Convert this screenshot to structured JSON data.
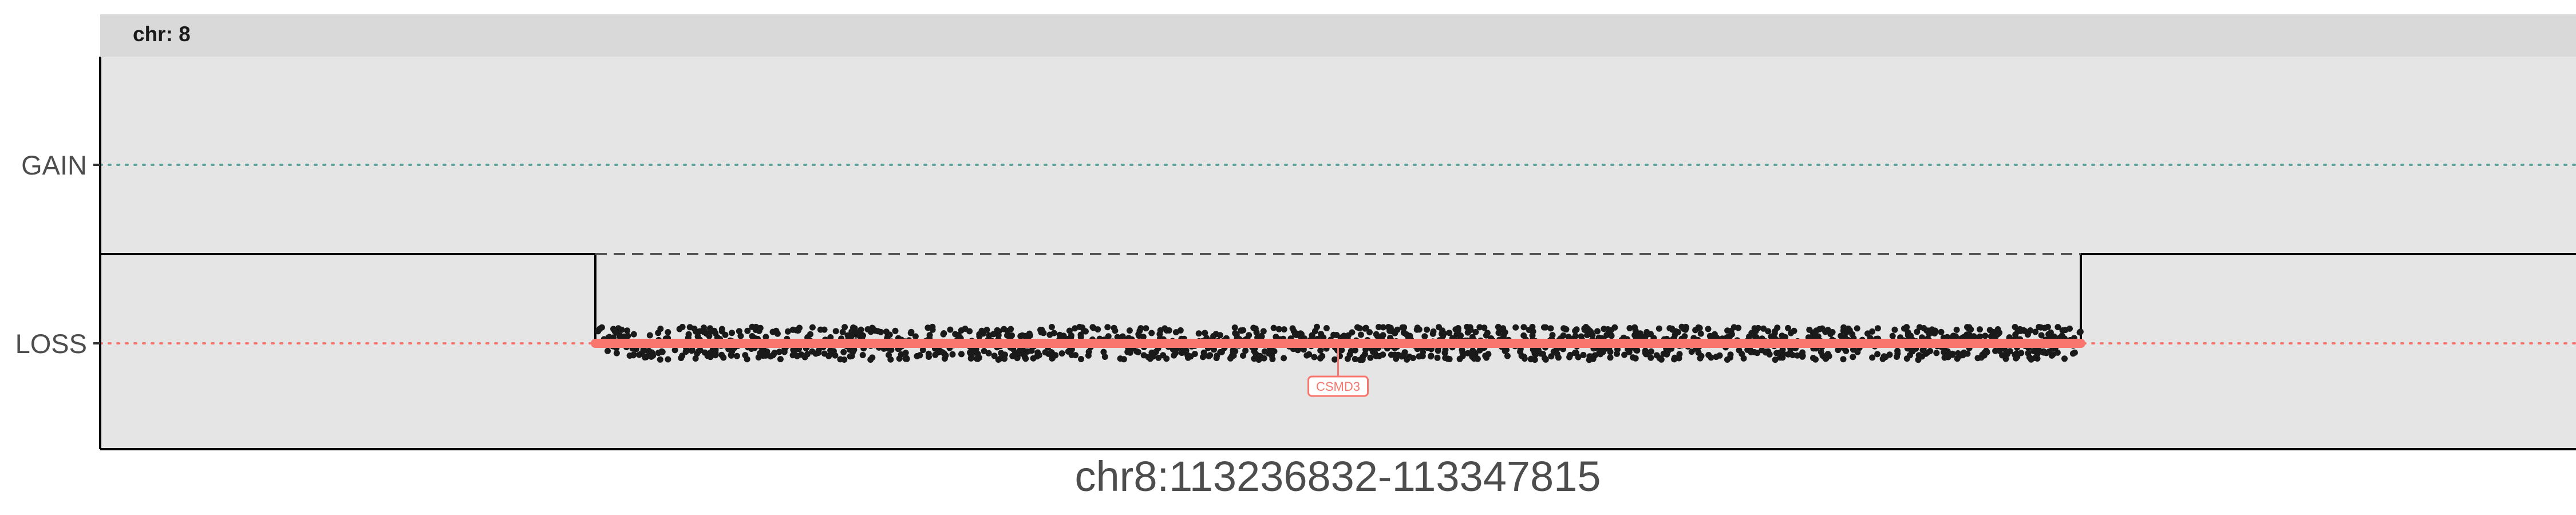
{
  "chart_data": {
    "type": "scatter",
    "facet_label": "chr: 8",
    "xlabel": "chr8:113236832-113347815",
    "y_categories": [
      "GAIN",
      "LOSS"
    ],
    "x_domain": [
      0,
      1
    ],
    "segments": {
      "neutral_value": 0,
      "loss_region": {
        "start": 0.2,
        "end": 0.8,
        "value": -1
      },
      "dashed_baseline": {
        "start": 0.2,
        "end": 0.8,
        "value": 0
      }
    },
    "points": {
      "category": "LOSS",
      "x_range": [
        0.2,
        0.8
      ],
      "count": 1500,
      "jitter": 0.12,
      "color": "#1a1a1a"
    },
    "highlight": {
      "category": "LOSS",
      "x_range": [
        0.2,
        0.8
      ],
      "color": "#f8766d"
    },
    "gene": {
      "name": "CSMD3",
      "x": 0.5,
      "category": "LOSS",
      "color": "#f8766d"
    },
    "reference_lines": [
      {
        "category": "GAIN",
        "color": "#5fa39a",
        "style": "dotted"
      },
      {
        "category": "LOSS",
        "color": "#f8766d",
        "style": "dotted"
      }
    ],
    "panel_color": "#e5e5e5",
    "strip_color": "#d9d9d9",
    "grid": false
  }
}
